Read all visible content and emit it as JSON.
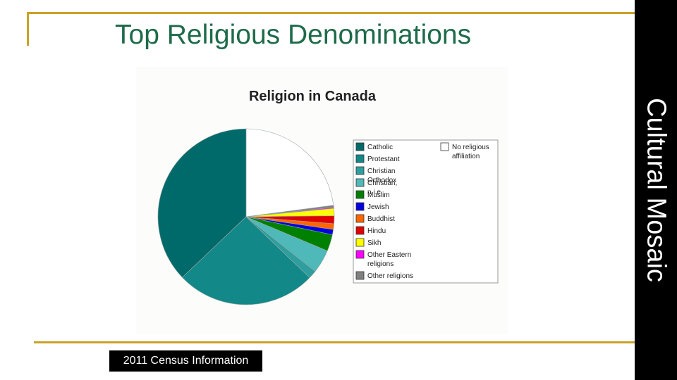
{
  "slide": {
    "title": "Top Religious Denominations",
    "side_title": "Cultural Mosaic",
    "caption": "2011 Census Information",
    "accent_color": "#c9a227",
    "title_color": "#1e6b4a"
  },
  "chart_data": {
    "type": "pie",
    "title": "Religion in Canada",
    "legend_position": "right",
    "slices": [
      {
        "label": "No religious affiliation",
        "value": 23.9,
        "color": "#ffffff"
      },
      {
        "label": "Other religions",
        "value": 0.4,
        "color": "#808080"
      },
      {
        "label": "Other Eastern religions",
        "value": 0.2,
        "color": "#ff00ff"
      },
      {
        "label": "Sikh",
        "value": 1.4,
        "color": "#ffff00"
      },
      {
        "label": "Hindu",
        "value": 1.5,
        "color": "#e00000"
      },
      {
        "label": "Buddhist",
        "value": 1.1,
        "color": "#ff6600"
      },
      {
        "label": "Jewish",
        "value": 1.0,
        "color": "#0000e0"
      },
      {
        "label": "Muslim",
        "value": 3.2,
        "color": "#008000"
      },
      {
        "label": "Christian, n.i.e.",
        "value": 4.5,
        "color": "#4fb8b8"
      },
      {
        "label": "Christian Orthodox",
        "value": 1.6,
        "color": "#2e9e9e"
      },
      {
        "label": "Protestant",
        "value": 26.8,
        "color": "#128888"
      },
      {
        "label": "Catholic",
        "value": 38.7,
        "color": "#006a6a"
      }
    ],
    "legend_left": [
      "Catholic",
      "Protestant",
      "Christian Orthodox",
      "Christian, n.i.e.",
      "Muslim",
      "Jewish",
      "Buddhist",
      "Hindu",
      "Sikh",
      "Other Eastern religions",
      "Other religions"
    ],
    "legend_right": [
      "No religious affiliation"
    ]
  }
}
